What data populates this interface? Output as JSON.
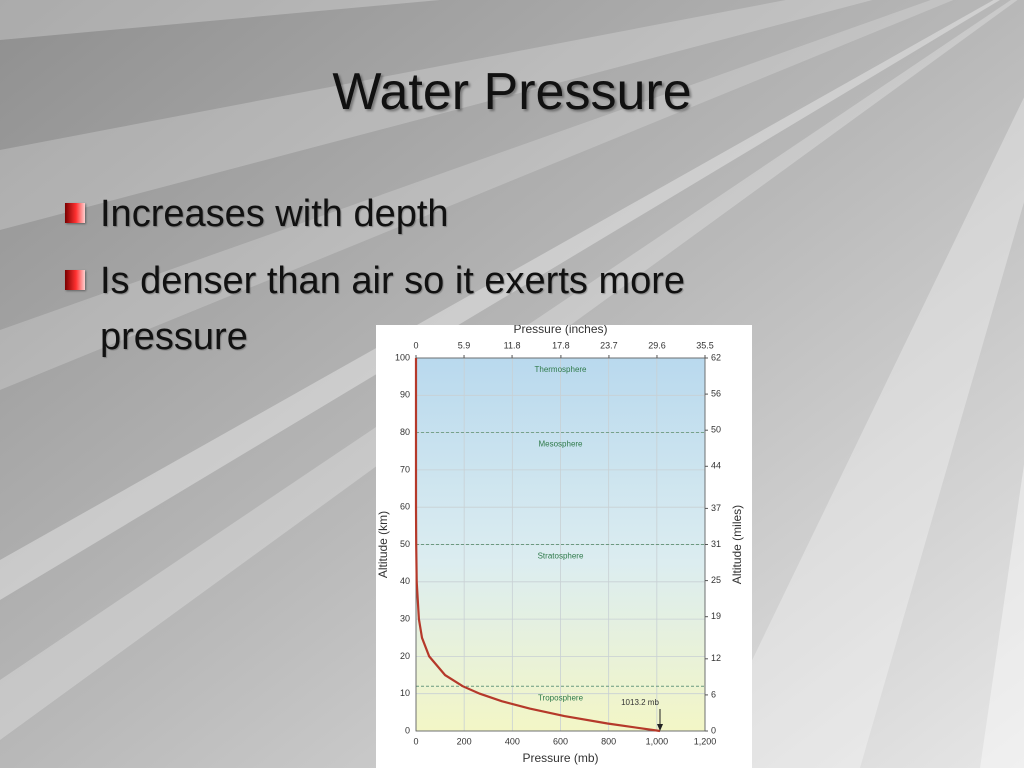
{
  "slide": {
    "title": "Water Pressure",
    "bullets": [
      "Increases with depth",
      "Is denser than air so it exerts more pressure"
    ]
  },
  "chart_data": {
    "type": "line",
    "x_label": "Pressure (mb)",
    "y_label": "Altitude (km)",
    "x2_label": "Pressure (inches)",
    "y2_label": "Altitude (miles)",
    "x": [
      1013.2,
      795,
      616,
      472,
      356,
      265,
      194,
      121,
      55,
      25,
      12,
      3,
      1,
      0.2,
      0.01,
      0
    ],
    "values": [
      0,
      2,
      4,
      6,
      8,
      10,
      12,
      15,
      20,
      25,
      30,
      40,
      50,
      60,
      80,
      100
    ],
    "color": "#b5392a",
    "xlim": [
      0,
      1200
    ],
    "xticks": [
      0,
      200,
      400,
      600,
      800,
      {
        "value": 1000,
        "label": "1,000"
      },
      {
        "value": 1200,
        "label": "1,200"
      }
    ],
    "ylim": [
      0,
      100
    ],
    "yticks": [
      0,
      10,
      20,
      30,
      40,
      50,
      60,
      70,
      80,
      90,
      100
    ],
    "x2lim": [
      0,
      35.5
    ],
    "x2ticks": [
      0,
      5.9,
      11.8,
      17.8,
      23.7,
      29.6,
      35.5
    ],
    "y2lim": [
      0,
      62
    ],
    "y2ticks": [
      0,
      6,
      12,
      19,
      25,
      31,
      37,
      44,
      50,
      56,
      62
    ],
    "layers": [
      {
        "label": "Troposphere",
        "from": 0,
        "to": 12
      },
      {
        "label": "Stratosphere",
        "from": 12,
        "to": 50
      },
      {
        "label": "Mesosphere",
        "from": 50,
        "to": 80
      },
      {
        "label": "Thermosphere",
        "from": 80,
        "to": 100
      }
    ],
    "annotation": "1013.2 mb",
    "grid": true
  }
}
